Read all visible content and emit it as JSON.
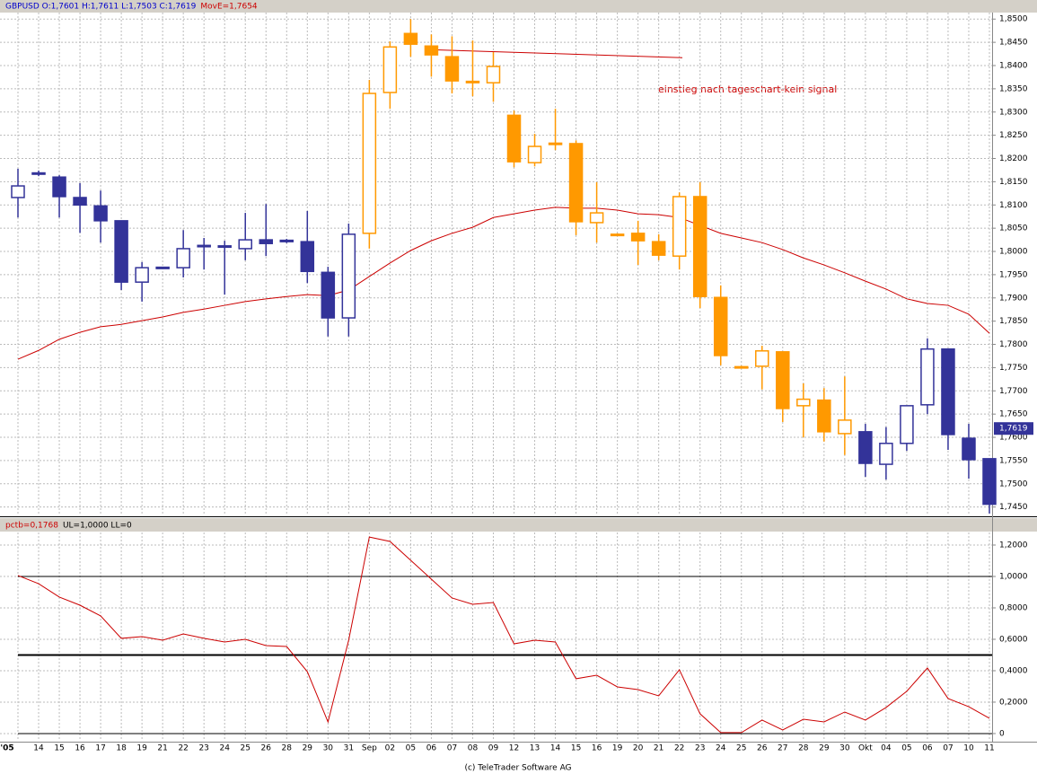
{
  "chart_data": [
    {
      "type": "candlestick",
      "header": "GBPUSD O:1,7601 H:1,7611 L:1,7503 C:1,7619",
      "header_indicator": "MovE=1,7654",
      "annotation": "einstieg nach tageschart-kein signal",
      "categories": [
        "'05",
        "14",
        "15",
        "16",
        "17",
        "18",
        "19",
        "21",
        "22",
        "23",
        "24",
        "25",
        "26",
        "28",
        "29",
        "30",
        "31",
        "Sep",
        "02",
        "05",
        "06",
        "07",
        "08",
        "09",
        "12",
        "13",
        "14",
        "15",
        "16",
        "19",
        "20",
        "21",
        "22",
        "23",
        "24",
        "25",
        "26",
        "27",
        "28",
        "29",
        "30",
        "Okt",
        "04",
        "05",
        "06",
        "07",
        "10",
        "11"
      ],
      "open": [
        1.8116,
        1.8169,
        1.816,
        1.8116,
        1.8098,
        1.8066,
        1.7934,
        1.7966,
        1.7965,
        1.8011,
        1.8012,
        1.8006,
        1.8025,
        1.8024,
        1.8021,
        1.7955,
        1.7857,
        1.8039,
        1.8342,
        1.8469,
        1.8442,
        1.8419,
        1.8366,
        1.8363,
        1.8293,
        1.8191,
        1.8231,
        1.8232,
        1.8062,
        1.8037,
        1.8039,
        1.8021,
        1.799,
        1.8118,
        1.7901,
        1.7752,
        1.7753,
        1.7784,
        1.7668,
        1.768,
        1.7608,
        1.7612,
        1.7542,
        1.7587,
        1.767,
        1.779,
        1.7598,
        1.7554
      ],
      "high": [
        1.8178,
        1.8174,
        1.8164,
        1.8147,
        1.8131,
        1.8066,
        1.7977,
        1.7967,
        1.8046,
        1.8029,
        1.8023,
        1.8083,
        1.8102,
        1.8027,
        1.8087,
        1.7967,
        1.806,
        1.8369,
        1.8452,
        1.85,
        1.8467,
        1.8463,
        1.8454,
        1.8429,
        1.8303,
        1.8253,
        1.8307,
        1.8239,
        1.8149,
        1.8039,
        1.8066,
        1.8037,
        1.8127,
        1.8149,
        1.7927,
        1.7754,
        1.7797,
        1.7784,
        1.7716,
        1.7706,
        1.7731,
        1.7629,
        1.7622,
        1.7668,
        1.7813,
        1.779,
        1.7629,
        1.7554
      ],
      "low": [
        1.8073,
        1.8162,
        1.8073,
        1.804,
        1.8019,
        1.7917,
        1.7892,
        1.7963,
        1.7944,
        1.7961,
        1.7907,
        1.7981,
        1.799,
        1.8018,
        1.7932,
        1.7817,
        1.7817,
        1.8006,
        1.8307,
        1.8419,
        1.8376,
        1.834,
        1.8334,
        1.8322,
        1.8181,
        1.8183,
        1.8218,
        1.8035,
        1.8019,
        1.8035,
        1.7971,
        1.7981,
        1.7961,
        1.7878,
        1.7755,
        1.7748,
        1.7703,
        1.7633,
        1.76,
        1.7591,
        1.7562,
        1.7515,
        1.7509,
        1.7571,
        1.765,
        1.7573,
        1.7511,
        1.7436
      ],
      "close": [
        1.8141,
        1.8167,
        1.8118,
        1.81,
        1.8066,
        1.7934,
        1.7965,
        1.7964,
        1.8006,
        1.8013,
        1.8012,
        1.8025,
        1.8017,
        1.8021,
        1.7957,
        1.7857,
        1.8037,
        1.834,
        1.844,
        1.8446,
        1.8423,
        1.8367,
        1.8365,
        1.8398,
        1.8193,
        1.8226,
        1.8233,
        1.8064,
        1.8083,
        1.8036,
        1.8023,
        1.7992,
        1.8118,
        1.7903,
        1.7776,
        1.775,
        1.7786,
        1.7662,
        1.7682,
        1.7612,
        1.7637,
        1.7544,
        1.7587,
        1.7668,
        1.779,
        1.7606,
        1.7552,
        1.7456
      ],
      "colors": [
        "#333399",
        "#333399",
        "#333399",
        "#333399",
        "#333399",
        "#333399",
        "#333399",
        "#333399",
        "#333399",
        "#333399",
        "#333399",
        "#333399",
        "#333399",
        "#333399",
        "#333399",
        "#333399",
        "#333399",
        "#ff9900",
        "#ff9900",
        "#ff9900",
        "#ff9900",
        "#ff9900",
        "#ff9900",
        "#ff9900",
        "#ff9900",
        "#ff9900",
        "#ff9900",
        "#ff9900",
        "#ff9900",
        "#ff9900",
        "#ff9900",
        "#ff9900",
        "#ff9900",
        "#ff9900",
        "#ff9900",
        "#ff9900",
        "#ff9900",
        "#ff9900",
        "#ff9900",
        "#ff9900",
        "#ff9900",
        "#333399",
        "#333399",
        "#333399",
        "#333399",
        "#333399",
        "#333399",
        "#333399"
      ],
      "ma_values": [
        1.7768,
        1.7787,
        1.7811,
        1.7826,
        1.7838,
        1.7843,
        1.7851,
        1.7859,
        1.7869,
        1.7876,
        1.7884,
        1.7892,
        1.7898,
        1.7903,
        1.7907,
        1.7905,
        1.7917,
        1.7946,
        1.7975,
        1.8002,
        1.8023,
        1.8039,
        1.8052,
        1.8073,
        1.8081,
        1.8089,
        1.8095,
        1.8093,
        1.8093,
        1.8089,
        1.8081,
        1.8079,
        1.8073,
        1.8056,
        1.8039,
        1.8029,
        1.8019,
        1.8004,
        1.7986,
        1.7971,
        1.7954,
        1.7936,
        1.7919,
        1.7898,
        1.7888,
        1.7884,
        1.7865,
        1.7824
      ],
      "ma_color": "#cc0000",
      "trendline": [
        1.8434,
        1.8417
      ],
      "last_price": {
        "value": 1.7619,
        "label": "1,7619"
      },
      "ylim": [
        1.7432,
        1.8514
      ],
      "yticks": [
        {
          "value": 1.745,
          "label": "1,7450"
        },
        {
          "value": 1.75,
          "label": "1,7500"
        },
        {
          "value": 1.755,
          "label": "1,7550"
        },
        {
          "value": 1.76,
          "label": "1,7600"
        },
        {
          "value": 1.765,
          "label": "1,7650"
        },
        {
          "value": 1.77,
          "label": "1,7700"
        },
        {
          "value": 1.775,
          "label": "1,7750"
        },
        {
          "value": 1.78,
          "label": "1,7800"
        },
        {
          "value": 1.785,
          "label": "1,7850"
        },
        {
          "value": 1.79,
          "label": "1,7900"
        },
        {
          "value": 1.795,
          "label": "1,7950"
        },
        {
          "value": 1.8,
          "label": "1,8000"
        },
        {
          "value": 1.805,
          "label": "1,8050"
        },
        {
          "value": 1.81,
          "label": "1,8100"
        },
        {
          "value": 1.815,
          "label": "1,8150"
        },
        {
          "value": 1.82,
          "label": "1,8200"
        },
        {
          "value": 1.825,
          "label": "1,8250"
        },
        {
          "value": 1.83,
          "label": "1,8300"
        },
        {
          "value": 1.835,
          "label": "1,8350"
        },
        {
          "value": 1.84,
          "label": "1,8400"
        },
        {
          "value": 1.845,
          "label": "1,8450"
        },
        {
          "value": 1.85,
          "label": "1,8500"
        }
      ],
      "grid": true
    },
    {
      "type": "line",
      "header": "pctb=0,1768",
      "header_limits": "UL=1,0000 LL=0",
      "values": [
        1.006,
        0.954,
        0.869,
        0.817,
        0.749,
        0.606,
        0.617,
        0.594,
        0.634,
        0.606,
        0.583,
        0.6,
        0.56,
        0.554,
        0.394,
        0.074,
        0.594,
        1.251,
        1.223,
        1.103,
        0.983,
        0.863,
        0.823,
        0.834,
        0.571,
        0.594,
        0.583,
        0.349,
        0.371,
        0.297,
        0.28,
        0.24,
        0.406,
        0.126,
        0.006,
        0.006,
        0.086,
        0.023,
        0.091,
        0.074,
        0.137,
        0.086,
        0.166,
        0.269,
        0.417,
        0.223,
        0.171,
        0.097
      ],
      "color": "#cc0000",
      "reference_lines": [
        1,
        0.5,
        0
      ],
      "ylim": [
        -0.046,
        1.28
      ],
      "yticks": [
        0,
        {
          "value": 0.2,
          "label": "0,2000"
        },
        {
          "value": 0.4,
          "label": "0,4000"
        },
        {
          "value": 0.6,
          "label": "0,6000"
        },
        {
          "value": 0.8,
          "label": "0,8000"
        },
        {
          "value": 1,
          "label": "1,0000"
        },
        {
          "value": 1.2,
          "label": "1,2000"
        }
      ],
      "grid": true
    }
  ],
  "footer": "(c) TeleTrader Software AG"
}
